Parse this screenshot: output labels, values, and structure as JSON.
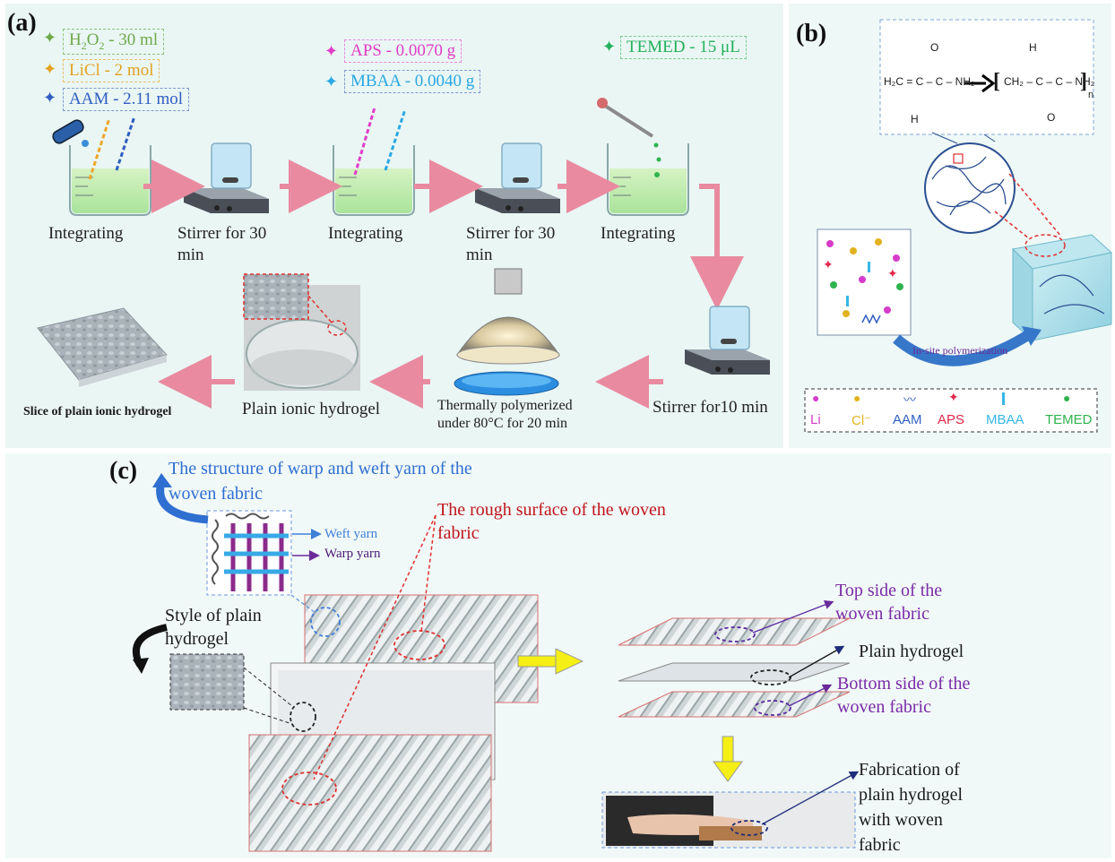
{
  "panels": {
    "a": "(a)",
    "b": "(b)",
    "c": "(c)"
  },
  "reagents": {
    "h2o2": {
      "prefix": "H",
      "sub1": "2",
      "mid": "O",
      "sub2": "2",
      "rest": " - 30 ml",
      "color": "#6fa84a"
    },
    "licl": {
      "text": "LiCl - 2 mol",
      "color": "#e2a21f"
    },
    "aam": {
      "text": "AAM - 2.11 mol",
      "color": "#2f5dc1"
    },
    "aps": {
      "text": "APS - 0.0070 g",
      "color": "#e13cc8"
    },
    "mbaa": {
      "text": "MBAA - 0.0040 g",
      "color": "#2aa8e3"
    },
    "temed": {
      "text": "TEMED - 15 μL",
      "color": "#23b05a"
    }
  },
  "steps": {
    "s1": "Integrating",
    "s2_l1": "Stirrer for 30",
    "s2_l2": "min",
    "s3": "Integrating",
    "s4_l1": "Stirrer for 30",
    "s4_l2": "min",
    "s5": "Integrating",
    "s6": "Stirrer for10 min",
    "s7_l1": "Thermally polymerized",
    "s7_l2": "under 80°C for 20 min",
    "s8": "Plain ionic hydrogel",
    "s9": "Slice of plain ionic hydrogel"
  },
  "panel_b": {
    "reaction_left": "H₂C = C – C – NH₂",
    "reaction_right": "CH₂ – C – C – NH₂",
    "sub_n": "n",
    "atom_O": "O",
    "atom_H": "H",
    "polymerization": "In-site polymerization",
    "legend": [
      {
        "label": "Li",
        "color": "#d63bc9",
        "symbol": "dot"
      },
      {
        "label": "Cl⁻",
        "color": "#e2b21f",
        "symbol": "dot"
      },
      {
        "label": "AAM",
        "color": "#2f5dc1",
        "symbol": "wave"
      },
      {
        "label": "APS",
        "color": "#e0284a",
        "symbol": "star"
      },
      {
        "label": "MBAA",
        "color": "#36b7e6",
        "symbol": "bar"
      },
      {
        "label": "TEMED",
        "color": "#2fb34f",
        "symbol": "dot"
      }
    ]
  },
  "panel_c": {
    "structure_l1": "The structure of warp and weft yarn of the",
    "structure_l2": "woven fabric",
    "weft": "Weft yarn",
    "warp": "Warp yarn",
    "rough_l1": "The rough surface of the woven",
    "rough_l2": "fabric",
    "style_l1": "Style of plain",
    "style_l2": "hydrogel",
    "top_l1": "Top side of the",
    "top_l2": "woven fabric",
    "plain": "Plain hydrogel",
    "bottom_l1": "Bottom side of the",
    "bottom_l2": "woven fabric",
    "fab_l1": "Fabrication of",
    "fab_l2": "plain hydrogel",
    "fab_l3": "with woven",
    "fab_l4": "fabric"
  },
  "colors": {
    "arrow": "#e98aa0",
    "blue_text": "#2f6fd1",
    "red_text": "#c0151c",
    "purple_text": "#7a2aa8",
    "yellow_arrow": "#f5ef15"
  }
}
